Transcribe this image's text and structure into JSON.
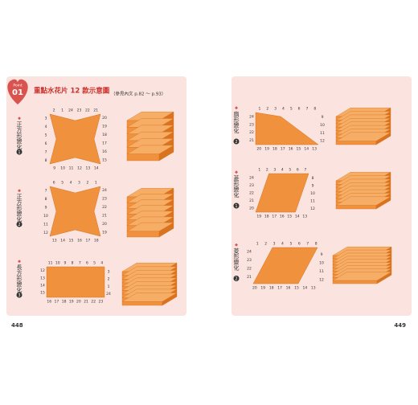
{
  "left_page": {
    "badge": {
      "top": "Point",
      "number": "01"
    },
    "title": "重點水花片 12 款示意圖",
    "reference": "（參見內文 p.82 ～ p.93）",
    "page_number": "448",
    "rows": [
      {
        "label": "正方形變化",
        "index": "1",
        "numbers": [
          "2",
          "1",
          "24",
          "23",
          "22",
          "21",
          "20",
          "19",
          "18",
          "17",
          "16",
          "15",
          "14",
          "13",
          "12",
          "11",
          "10",
          "9",
          "8",
          "7",
          "6",
          "5",
          "4",
          "3"
        ]
      },
      {
        "label": "正方形變化",
        "index": "2",
        "numbers": [
          "6",
          "5",
          "4",
          "3",
          "2",
          "1",
          "24",
          "23",
          "22",
          "21",
          "20",
          "19",
          "18",
          "17",
          "16",
          "15",
          "14",
          "13",
          "12",
          "11",
          "10",
          "9",
          "8",
          "7"
        ]
      },
      {
        "label": "長方形變化",
        "index": "3",
        "numbers": [
          "11",
          "10",
          "9",
          "8",
          "7",
          "6",
          "5",
          "4",
          "3",
          "2",
          "1",
          "24",
          "23",
          "22",
          "21",
          "20",
          "19",
          "18",
          "17",
          "16",
          "15",
          "14",
          "13",
          "12"
        ]
      }
    ]
  },
  "right_page": {
    "page_number": "449",
    "rows": [
      {
        "label": "扇形變化",
        "index": "2",
        "numbers": [
          "1",
          "2",
          "3",
          "4",
          "5",
          "6",
          "7",
          "8",
          "9",
          "10",
          "11",
          "12",
          "13",
          "14",
          "15",
          "16",
          "17",
          "18",
          "19",
          "20",
          "21",
          "22",
          "23",
          "24"
        ]
      },
      {
        "label": "菱形變化",
        "index": "1",
        "numbers": [
          "1",
          "2",
          "3",
          "4",
          "5",
          "6",
          "7",
          "8",
          "9",
          "10",
          "11",
          "12",
          "13",
          "14",
          "15",
          "16",
          "17",
          "18",
          "19",
          "20",
          "21",
          "22",
          "23",
          "24"
        ]
      },
      {
        "label": "菱形變化",
        "index": "2",
        "numbers": [
          "1",
          "2",
          "3",
          "4",
          "5",
          "6",
          "7",
          "8",
          "9",
          "10",
          "11",
          "12",
          "13",
          "14",
          "15",
          "16",
          "17",
          "18",
          "19",
          "20",
          "21",
          "22",
          "23",
          "24"
        ]
      }
    ]
  }
}
